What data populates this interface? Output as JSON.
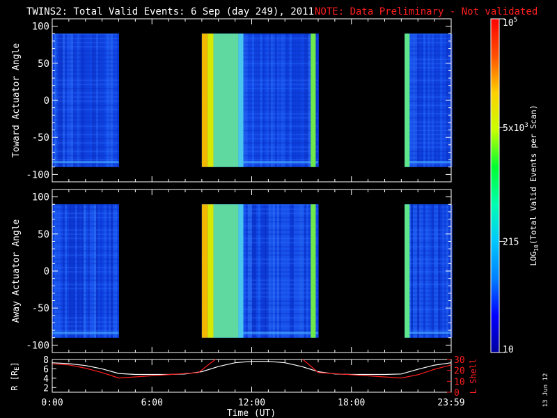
{
  "chart_data": [
    {
      "type": "heatmap",
      "title": "TWINS2: Total Valid Events:  6 Sep (day 249), 2011",
      "note": "NOTE: Data Preliminary - Not validated",
      "ylabel": "Toward Actuator Angle",
      "ylim": [
        -110,
        110
      ],
      "yticks": [
        "100",
        "50",
        "0",
        "-50",
        "-100"
      ],
      "ytick_values": [
        100,
        50,
        0,
        -50,
        -100
      ],
      "xlim_hours": [
        0,
        24
      ],
      "value_ylim": [
        -90,
        90
      ],
      "data_intervals_hours": [
        [
          0.0,
          4.0
        ],
        [
          9.0,
          16.0
        ],
        [
          21.2,
          24.0
        ]
      ],
      "bright_bands_hours": [
        [
          9.0,
          9.35,
          "#f2b800"
        ],
        [
          9.35,
          9.7,
          "#d9e800"
        ],
        [
          9.7,
          11.2,
          "#5fd9a0"
        ],
        [
          11.2,
          11.5,
          "#49c6f0"
        ],
        [
          15.55,
          15.85,
          "#6ee84a"
        ],
        [
          21.2,
          21.5,
          "#5fe58a"
        ]
      ],
      "grid": false
    },
    {
      "type": "heatmap",
      "title": "",
      "ylabel": "Away Actuator Angle",
      "ylim": [
        -110,
        110
      ],
      "yticks": [
        "100",
        "50",
        "0",
        "-50",
        "-100"
      ],
      "ytick_values": [
        100,
        50,
        0,
        -50,
        -100
      ],
      "xlim_hours": [
        0,
        24
      ],
      "value_ylim": [
        -90,
        90
      ],
      "data_intervals_hours": [
        [
          0.0,
          4.0
        ],
        [
          9.0,
          16.0
        ],
        [
          21.2,
          24.0
        ]
      ],
      "bright_bands_hours": [
        [
          9.0,
          9.35,
          "#f2b800"
        ],
        [
          9.35,
          9.7,
          "#d9e800"
        ],
        [
          9.7,
          11.2,
          "#5fd9a0"
        ],
        [
          11.2,
          11.5,
          "#49c6f0"
        ],
        [
          15.55,
          15.85,
          "#6ee84a"
        ],
        [
          21.2,
          21.5,
          "#5fe58a"
        ]
      ],
      "grid": false
    },
    {
      "type": "line",
      "title": "",
      "xlabel": "Time (UT)",
      "xticks": [
        "0:00",
        "6:00",
        "12:00",
        "18:00",
        "23:59"
      ],
      "xtick_values_hours": [
        0,
        6,
        12,
        18,
        24
      ],
      "ylabel_left": "R [R",
      "ylabel_left_subscript": "E",
      "ylabel_left_close": "]",
      "ylim_left": [
        1,
        8
      ],
      "yticks_left": [
        "8",
        "6",
        "4",
        "2"
      ],
      "ytick_values_left": [
        8,
        6,
        4,
        2
      ],
      "ylabel_right": "L Shell",
      "ylim_right": [
        0,
        30
      ],
      "yticks_right": [
        "30",
        "20",
        "10",
        "0"
      ],
      "ytick_values_right": [
        30,
        20,
        10,
        0
      ],
      "series": [
        {
          "axis": "left",
          "color": "#ffffff",
          "x": [
            0,
            1,
            2,
            3,
            4,
            5,
            6,
            7,
            8,
            9,
            10,
            11,
            12,
            13,
            14,
            15,
            16,
            17,
            18,
            19,
            20,
            21,
            22,
            23,
            24
          ],
          "y": [
            7.3,
            7.1,
            6.7,
            6.0,
            5.0,
            4.8,
            4.8,
            4.8,
            4.9,
            5.4,
            6.5,
            7.3,
            7.6,
            7.6,
            7.3,
            6.5,
            5.4,
            4.9,
            4.8,
            4.8,
            4.8,
            4.9,
            5.9,
            6.8,
            7.3
          ]
        },
        {
          "axis": "right",
          "color": "#ff1e1e",
          "x": [
            0,
            1,
            2,
            3,
            4,
            8.8,
            9.3,
            9.9,
            10.0,
            null,
            14.9,
            15.0,
            15.7,
            16.0,
            21.0,
            22.0,
            23.0,
            24.0
          ],
          "y": [
            26,
            25,
            22,
            18,
            13,
            18,
            24,
            31,
            33,
            null,
            33,
            31,
            22,
            18,
            13,
            16,
            21,
            25
          ]
        }
      ],
      "grid": false
    }
  ],
  "colorbar": {
    "label": "LOG",
    "label_subscript": "10",
    "label_rest": "(Total Valid Events per Scan)",
    "ticks": [
      {
        "label": "10",
        "value": 10
      },
      {
        "label": "215",
        "value": 215
      },
      {
        "label": "5x10",
        "sup": "3",
        "value": 5000
      },
      {
        "label": "10",
        "sup": "5",
        "value": 100000
      }
    ],
    "colors": [
      "#0000a0",
      "#0000ff",
      "#0080ff",
      "#00c8ff",
      "#00ffb0",
      "#00ff30",
      "#c8ff00",
      "#ffd000",
      "#ff5000",
      "#ff0000"
    ],
    "min": 10,
    "max": 100000
  },
  "footer_date": "13 Jun 12"
}
